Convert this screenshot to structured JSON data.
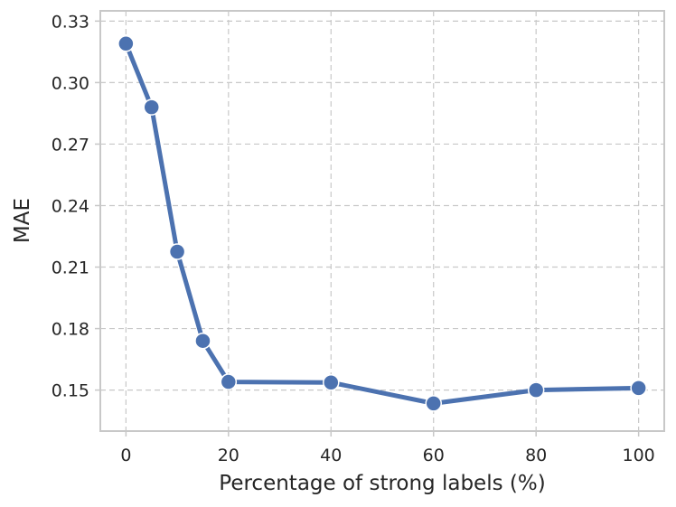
{
  "chart_data": {
    "type": "line",
    "xlabel": "Percentage of strong labels (%)",
    "ylabel": "MAE",
    "xlim": [
      -5,
      105
    ],
    "ylim": [
      0.13,
      0.335
    ],
    "x_ticks": [
      0,
      20,
      40,
      60,
      80,
      100
    ],
    "y_ticks": [
      0.15,
      0.18,
      0.21,
      0.24,
      0.27,
      0.3,
      0.33
    ],
    "x_tick_labels": [
      "0",
      "20",
      "40",
      "60",
      "80",
      "100"
    ],
    "y_tick_labels": [
      "0.15",
      "0.18",
      "0.21",
      "0.24",
      "0.27",
      "0.30",
      "0.33"
    ],
    "grid": true,
    "series": [
      {
        "color": "#4c72b0",
        "x": [
          0,
          5,
          10,
          15,
          20,
          40,
          60,
          80,
          100
        ],
        "y": [
          0.319,
          0.288,
          0.2175,
          0.174,
          0.154,
          0.1537,
          0.1435,
          0.15,
          0.151
        ]
      }
    ]
  }
}
